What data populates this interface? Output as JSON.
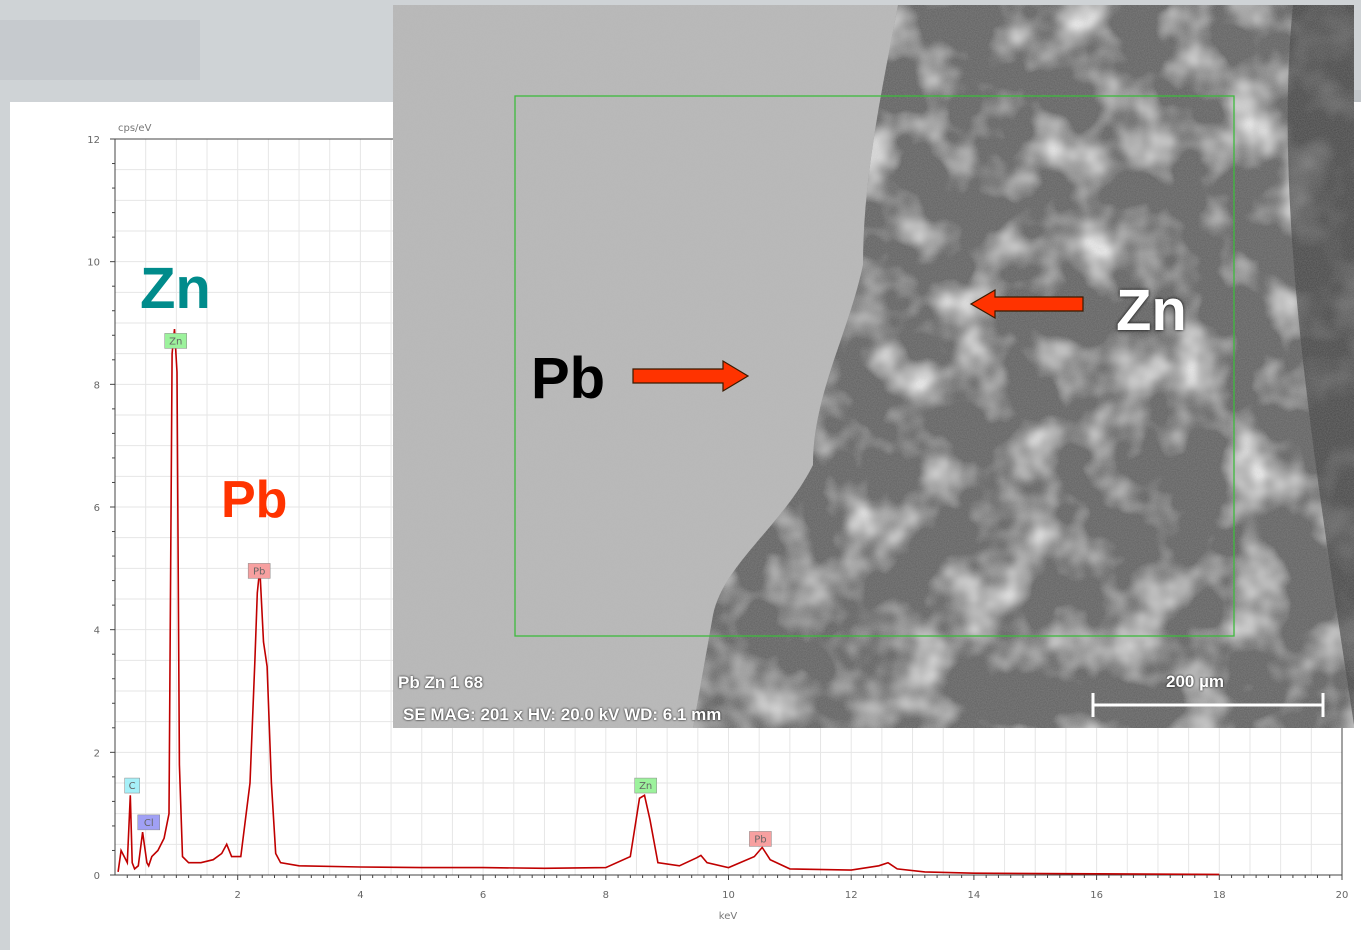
{
  "colors": {
    "spectrum_line": "#c00000",
    "zn_label": "#008b8b",
    "pb_label": "#ff3300",
    "arrow": "#ff3300",
    "roi_box": "#3dbb3d",
    "tag_zn": "#9cf29c",
    "tag_pb": "#f7a0a0",
    "tag_c": "#a6f0f8",
    "tag_cl": "#a0a0f5"
  },
  "big_labels": {
    "zn": "Zn",
    "pb": "Pb"
  },
  "sem": {
    "label_pb": "Pb",
    "label_zn": "Zn",
    "sample_id": "Pb Zn 1 68",
    "info": "SE  MAG: 201 x  HV: 20.0 kV  WD: 6.1 mm",
    "scale_label": "200 µm"
  },
  "chart_data": {
    "type": "line",
    "title": "",
    "xlabel": "keV",
    "ylabel": "cps/eV",
    "xlim": [
      0,
      20
    ],
    "ylim": [
      0,
      12
    ],
    "x_ticks": [
      2,
      4,
      6,
      8,
      10,
      12,
      14,
      16,
      18,
      20
    ],
    "y_ticks": [
      0,
      2,
      4,
      6,
      8,
      10,
      12
    ],
    "grid": true,
    "series": [
      {
        "x": [
          0.05,
          0.1,
          0.2,
          0.25,
          0.28,
          0.32,
          0.38,
          0.45,
          0.52,
          0.55,
          0.6,
          0.7,
          0.8,
          0.88,
          0.93,
          0.97,
          1.01,
          1.05,
          1.1,
          1.2,
          1.4,
          1.6,
          1.74,
          1.82,
          1.9,
          2.05,
          2.2,
          2.28,
          2.32,
          2.36,
          2.42,
          2.48,
          2.55,
          2.62,
          2.7,
          3.0,
          4.0,
          5.0,
          6.0,
          7.0,
          8.0,
          8.4,
          8.55,
          8.63,
          8.72,
          8.85,
          9.2,
          9.48,
          9.55,
          9.65,
          10.0,
          10.42,
          10.55,
          10.68,
          11.0,
          12.0,
          12.45,
          12.6,
          12.75,
          13.2,
          14.0,
          16.0,
          18.0
        ],
        "y": [
          0.05,
          0.4,
          0.2,
          1.3,
          0.2,
          0.1,
          0.15,
          0.7,
          0.2,
          0.15,
          0.3,
          0.4,
          0.6,
          1.0,
          8.5,
          8.9,
          8.2,
          1.8,
          0.3,
          0.2,
          0.2,
          0.25,
          0.35,
          0.5,
          0.3,
          0.3,
          1.5,
          3.5,
          4.6,
          5.0,
          3.8,
          3.4,
          1.5,
          0.35,
          0.2,
          0.15,
          0.13,
          0.12,
          0.12,
          0.11,
          0.12,
          0.3,
          1.25,
          1.3,
          0.9,
          0.2,
          0.15,
          0.28,
          0.32,
          0.2,
          0.12,
          0.3,
          0.45,
          0.25,
          0.1,
          0.08,
          0.15,
          0.2,
          0.1,
          0.05,
          0.03,
          0.02,
          0.01
        ]
      }
    ],
    "peak_tags": [
      {
        "label": "Zn",
        "x": 0.99,
        "y": 8.7,
        "kind": "zn"
      },
      {
        "label": "Pb",
        "x": 2.35,
        "y": 4.95,
        "kind": "pb"
      },
      {
        "label": "C",
        "x": 0.28,
        "y": 1.45,
        "kind": "c"
      },
      {
        "label": "Cl",
        "x": 0.55,
        "y": 0.85,
        "kind": "cl"
      },
      {
        "label": "Zn",
        "x": 8.65,
        "y": 1.45,
        "kind": "zn"
      },
      {
        "label": "Pb",
        "x": 10.52,
        "y": 0.58,
        "kind": "pb"
      }
    ]
  }
}
